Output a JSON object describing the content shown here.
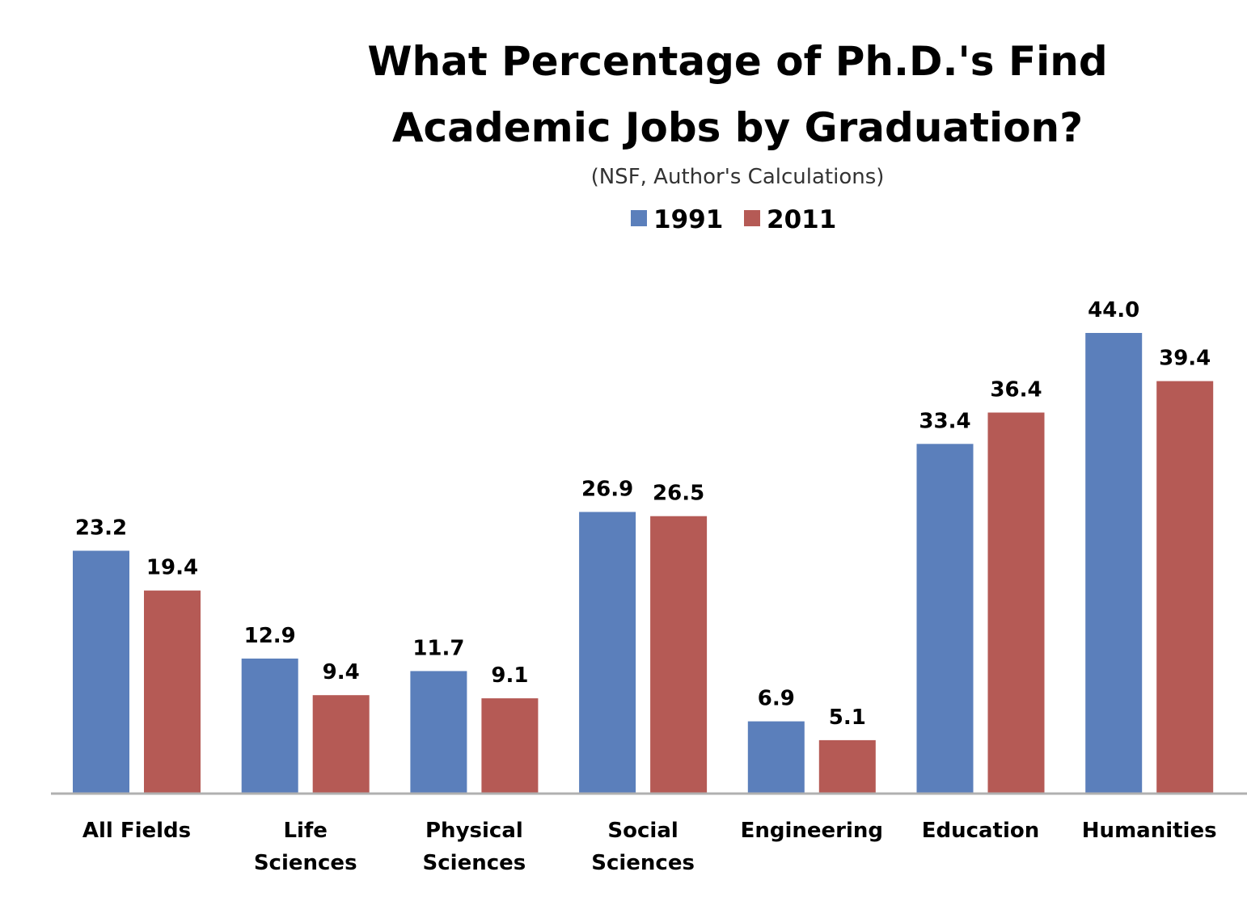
{
  "chart_data": {
    "type": "bar",
    "title_lines": [
      "What Percentage of Ph.D.'s Find",
      "Academic Jobs by Graduation?"
    ],
    "subtitle": "(NSF, Author's Calculations)",
    "categories": [
      [
        "All Fields"
      ],
      [
        "Life",
        "Sciences"
      ],
      [
        "Physical",
        "Sciences"
      ],
      [
        "Social",
        "Sciences"
      ],
      [
        "Engineering"
      ],
      [
        "Education"
      ],
      [
        "Humanities"
      ]
    ],
    "series": [
      {
        "name": "1991",
        "color": "#5b7fbb",
        "values": [
          23.2,
          12.9,
          11.7,
          26.9,
          6.9,
          33.4,
          44.0
        ],
        "labels": [
          "23.2",
          "12.9",
          "11.7",
          "26.9",
          "6.9",
          "33.4",
          "44.0"
        ]
      },
      {
        "name": "2011",
        "color": "#b55a55",
        "values": [
          19.4,
          9.4,
          9.1,
          26.5,
          5.1,
          36.4,
          39.4
        ],
        "labels": [
          "19.4",
          "9.4",
          "9.1",
          "26.5",
          "5.1",
          "36.4",
          "39.4"
        ]
      }
    ],
    "ylim": [
      0,
      44
    ],
    "grid": false,
    "legend_position": "top-center",
    "axis_color": "#b0b0b0"
  }
}
